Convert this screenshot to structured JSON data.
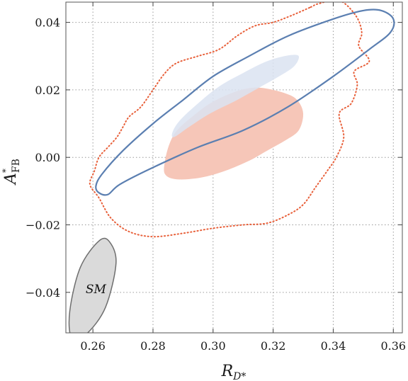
{
  "chart_data": {
    "type": "contour",
    "xlabel_main": "R",
    "xlabel_sub": "D*",
    "ylabel_main": "A",
    "ylabel_sub": "FB",
    "ylabel_sup": "*",
    "xlim": [
      0.251,
      0.363
    ],
    "ylim": [
      -0.052,
      0.046
    ],
    "xticks": [
      0.26,
      0.28,
      0.3,
      0.32,
      0.34,
      0.36
    ],
    "xtick_labels": [
      "0.26",
      "0.28",
      "0.30",
      "0.32",
      "0.34",
      "0.36"
    ],
    "yticks": [
      -0.04,
      -0.02,
      0.0,
      0.02,
      0.04
    ],
    "ytick_labels": [
      "−0.04",
      "−0.02",
      "0.00",
      "0.02",
      "0.04"
    ],
    "grid": true,
    "colors": {
      "blue_line": "#5b7fb1",
      "blue_fill": "#dbe3f1",
      "red_fill": "#f6c6b8",
      "red_dotted": "#e8603a",
      "sm_fill": "#dadada",
      "sm_line": "#6e6e6e",
      "grid": "#9a9a9a"
    },
    "regions": [
      {
        "id": "red-dotted",
        "style": "dotted",
        "points": [
          [
            0.3325,
            0.0445
          ],
          [
            0.335,
            0.0455
          ],
          [
            0.342,
            0.0465
          ],
          [
            0.3475,
            0.042
          ],
          [
            0.3495,
            0.037
          ],
          [
            0.3485,
            0.033
          ],
          [
            0.352,
            0.0285
          ],
          [
            0.347,
            0.0255
          ],
          [
            0.348,
            0.0215
          ],
          [
            0.346,
            0.016
          ],
          [
            0.342,
            0.013
          ],
          [
            0.3435,
            0.006
          ],
          [
            0.341,
            0.0
          ],
          [
            0.338,
            -0.004
          ],
          [
            0.334,
            -0.009
          ],
          [
            0.33,
            -0.014
          ],
          [
            0.325,
            -0.017
          ],
          [
            0.318,
            -0.0195
          ],
          [
            0.31,
            -0.02
          ],
          [
            0.3,
            -0.021
          ],
          [
            0.29,
            -0.0225
          ],
          [
            0.28,
            -0.0235
          ],
          [
            0.272,
            -0.022
          ],
          [
            0.266,
            -0.018
          ],
          [
            0.262,
            -0.012
          ],
          [
            0.259,
            -0.008
          ],
          [
            0.2605,
            -0.004
          ],
          [
            0.262,
            0.0
          ],
          [
            0.265,
            0.003
          ],
          [
            0.268,
            0.006
          ],
          [
            0.27,
            0.009
          ],
          [
            0.272,
            0.012
          ],
          [
            0.276,
            0.015
          ],
          [
            0.28,
            0.02
          ],
          [
            0.284,
            0.025
          ],
          [
            0.288,
            0.028
          ],
          [
            0.295,
            0.03
          ],
          [
            0.302,
            0.032
          ],
          [
            0.308,
            0.036
          ],
          [
            0.314,
            0.039
          ],
          [
            0.32,
            0.04
          ],
          [
            0.326,
            0.042
          ]
        ]
      },
      {
        "id": "red-fill",
        "style": "fill",
        "points": [
          [
            0.317,
            0.0205
          ],
          [
            0.324,
            0.019
          ],
          [
            0.328,
            0.017
          ],
          [
            0.33,
            0.013
          ],
          [
            0.3285,
            0.008
          ],
          [
            0.324,
            0.005
          ],
          [
            0.318,
            0.002
          ],
          [
            0.312,
            -0.001
          ],
          [
            0.304,
            -0.004
          ],
          [
            0.296,
            -0.006
          ],
          [
            0.288,
            -0.0065
          ],
          [
            0.284,
            -0.005
          ],
          [
            0.284,
            -0.001
          ],
          [
            0.2855,
            0.004
          ],
          [
            0.288,
            0.008
          ],
          [
            0.293,
            0.012
          ],
          [
            0.299,
            0.016
          ],
          [
            0.306,
            0.019
          ],
          [
            0.312,
            0.0205
          ]
        ]
      },
      {
        "id": "blue-fill",
        "style": "fill",
        "points": [
          [
            0.3285,
            0.03
          ],
          [
            0.327,
            0.027
          ],
          [
            0.322,
            0.024
          ],
          [
            0.316,
            0.021
          ],
          [
            0.308,
            0.017
          ],
          [
            0.299,
            0.013
          ],
          [
            0.292,
            0.009
          ],
          [
            0.287,
            0.006
          ],
          [
            0.2865,
            0.0075
          ],
          [
            0.289,
            0.011
          ],
          [
            0.295,
            0.016
          ],
          [
            0.302,
            0.021
          ],
          [
            0.31,
            0.025
          ],
          [
            0.318,
            0.0285
          ],
          [
            0.325,
            0.0302
          ]
        ]
      },
      {
        "id": "blue-contour",
        "style": "line",
        "points": [
          [
            0.356,
            0.0435
          ],
          [
            0.36,
            0.041
          ],
          [
            0.359,
            0.037
          ],
          [
            0.352,
            0.032
          ],
          [
            0.34,
            0.024
          ],
          [
            0.325,
            0.015
          ],
          [
            0.31,
            0.008
          ],
          [
            0.295,
            0.003
          ],
          [
            0.28,
            -0.003
          ],
          [
            0.269,
            -0.008
          ],
          [
            0.265,
            -0.011
          ],
          [
            0.262,
            -0.0105
          ],
          [
            0.261,
            -0.0085
          ],
          [
            0.263,
            -0.005
          ],
          [
            0.27,
            0.002
          ],
          [
            0.28,
            0.01
          ],
          [
            0.29,
            0.017
          ],
          [
            0.3,
            0.024
          ],
          [
            0.312,
            0.03
          ],
          [
            0.325,
            0.036
          ],
          [
            0.34,
            0.041
          ],
          [
            0.35,
            0.0435
          ]
        ]
      },
      {
        "id": "sm-ellipse",
        "style": "ellipse",
        "center": [
          0.26,
          -0.0385
        ],
        "points": [
          [
            0.2656,
            -0.0251
          ],
          [
            0.2677,
            -0.0314
          ],
          [
            0.2642,
            -0.0444
          ],
          [
            0.2579,
            -0.0523
          ],
          [
            0.253,
            -0.0536
          ],
          [
            0.2523,
            -0.0456
          ],
          [
            0.2558,
            -0.0326
          ],
          [
            0.2621,
            -0.0247
          ]
        ]
      }
    ],
    "annotations": [
      {
        "text": "SM",
        "x": 0.261,
        "y": -0.039
      }
    ]
  }
}
